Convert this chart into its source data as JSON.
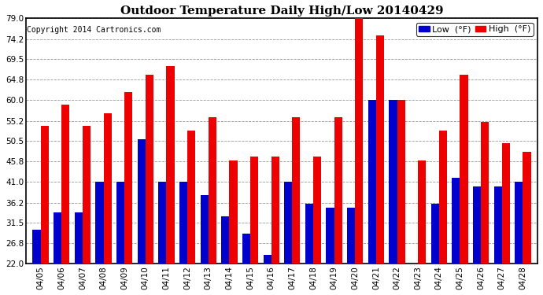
{
  "title": "Outdoor Temperature Daily High/Low 20140429",
  "copyright": "Copyright 2014 Cartronics.com",
  "legend_low": "Low  (°F)",
  "legend_high": "High  (°F)",
  "dates": [
    "04/05",
    "04/06",
    "04/07",
    "04/08",
    "04/09",
    "04/10",
    "04/11",
    "04/12",
    "04/13",
    "04/14",
    "04/15",
    "04/16",
    "04/17",
    "04/18",
    "04/19",
    "04/20",
    "04/21",
    "04/22",
    "04/23",
    "04/24",
    "04/25",
    "04/26",
    "04/27",
    "04/28"
  ],
  "lows": [
    30,
    34,
    34,
    41,
    41,
    51,
    41,
    41,
    38,
    33,
    29,
    24,
    41,
    36,
    35,
    35,
    60,
    60,
    22,
    36,
    42,
    40,
    40,
    41
  ],
  "highs": [
    54,
    59,
    54,
    57,
    62,
    66,
    68,
    53,
    56,
    46,
    47,
    47,
    56,
    47,
    56,
    79,
    75,
    60,
    46,
    53,
    66,
    55,
    50,
    48
  ],
  "ymin": 22.0,
  "ymax": 79.0,
  "yticks": [
    22.0,
    26.8,
    31.5,
    36.2,
    41.0,
    45.8,
    50.5,
    55.2,
    60.0,
    64.8,
    69.5,
    74.2,
    79.0
  ],
  "low_color": "#0000cc",
  "high_color": "#ee0000",
  "background_color": "#ffffff",
  "grid_color": "#999999",
  "title_fontsize": 11,
  "copyright_fontsize": 7,
  "tick_fontsize": 7.5,
  "legend_fontsize": 8
}
